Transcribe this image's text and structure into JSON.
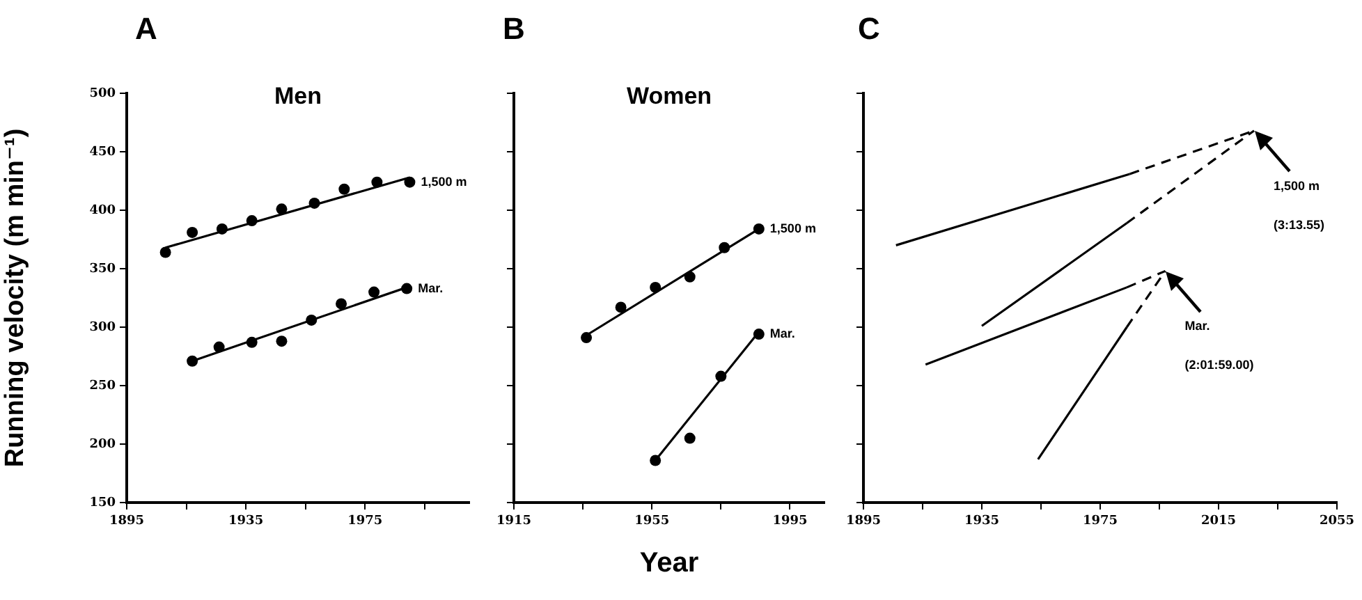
{
  "chart_data": [
    {
      "type": "scatter",
      "title": "Men",
      "ylabel": "Running velocity (m min⁻¹)",
      "annotations": [
        "A"
      ],
      "xlim": [
        1895,
        2010
      ],
      "xticks": [
        1895,
        {
          "value": 1915,
          "label": null
        },
        1935,
        {
          "value": 1955,
          "label": null
        },
        1975,
        {
          "value": 1995,
          "label": null
        }
      ],
      "ylim": [
        150,
        500
      ],
      "yticks": [
        150,
        200,
        250,
        300,
        350,
        400,
        450,
        500
      ],
      "series": [
        {
          "name": "1,500 m",
          "marker": "circle",
          "color": "#000000",
          "x": [
            1908,
            1917,
            1927,
            1937,
            1947,
            1958,
            1968,
            1979,
            1990
          ],
          "values": [
            364,
            381,
            384,
            391,
            401,
            406,
            418,
            424,
            424
          ]
        },
        {
          "name": "Mar.",
          "marker": "circle",
          "color": "#000000",
          "x": [
            1917,
            1926,
            1937,
            1947,
            1957,
            1967,
            1978,
            1989
          ],
          "values": [
            271,
            283,
            287,
            288,
            306,
            320,
            330,
            333
          ]
        },
        {
          "type": "line",
          "marker": "none",
          "line_style": "solid",
          "color": "#000000",
          "x": [
            1908,
            1990
          ],
          "values": [
            368,
            428
          ]
        },
        {
          "type": "line",
          "marker": "none",
          "line_style": "solid",
          "color": "#000000",
          "x": [
            1917,
            1989
          ],
          "values": [
            271,
            334
          ]
        }
      ]
    },
    {
      "type": "scatter",
      "title": "Women",
      "xlabel": "Year",
      "annotations": [
        "B"
      ],
      "tick_labels": "x",
      "xlim": [
        1915,
        2005
      ],
      "xticks": [
        1915,
        {
          "value": 1935,
          "label": null
        },
        1955,
        {
          "value": 1975,
          "label": null
        },
        1995
      ],
      "ylim": [
        150,
        500
      ],
      "yticks": [
        150,
        200,
        250,
        300,
        350,
        400,
        450,
        500
      ],
      "series": [
        {
          "name": "1,500 m",
          "marker": "circle",
          "color": "#000000",
          "x": [
            1936,
            1946,
            1956,
            1966,
            1976,
            1986
          ],
          "values": [
            291,
            317,
            334,
            343,
            368,
            384
          ]
        },
        {
          "name": "Mar.",
          "marker": "circle",
          "color": "#000000",
          "x": [
            1956,
            1966,
            1975,
            1986
          ],
          "values": [
            186,
            205,
            258,
            294
          ]
        },
        {
          "type": "line",
          "marker": "none",
          "line_style": "solid",
          "color": "#000000",
          "x": [
            1936,
            1986
          ],
          "values": [
            293,
            384
          ]
        },
        {
          "type": "line",
          "marker": "none",
          "line_style": "solid",
          "color": "#000000",
          "x": [
            1956,
            1986
          ],
          "values": [
            186,
            296
          ]
        }
      ]
    },
    {
      "type": "line",
      "annotations": [
        "C",
        {
          "text": "1,500 m",
          "x": 2027,
          "y": 468
        },
        "(3:13.55)",
        {
          "text": "Mar.",
          "x": 1997,
          "y": 348
        },
        "(2:01:59.00)"
      ],
      "tick_labels": "x",
      "xlim": [
        1895,
        2055
      ],
      "xticks": [
        1895,
        {
          "value": 1915,
          "label": null
        },
        1935,
        {
          "value": 1955,
          "label": null
        },
        1975,
        {
          "value": 1995,
          "label": null
        },
        2015,
        {
          "value": 2035,
          "label": null
        },
        2055
      ],
      "ylim": [
        150,
        500
      ],
      "yticks": [
        150,
        200,
        250,
        300,
        350,
        400,
        450,
        500
      ],
      "series": [
        {
          "marker": "none",
          "line_style": "solid",
          "color": "#000000",
          "x": [
            1906,
            1985
          ],
          "values": [
            370,
            431
          ]
        },
        {
          "marker": "none",
          "line_style": "dashed",
          "color": "#000000",
          "x": [
            1985,
            2027
          ],
          "values": [
            431,
            468
          ]
        },
        {
          "marker": "none",
          "line_style": "solid",
          "color": "#000000",
          "x": [
            1935,
            1984
          ],
          "values": [
            301,
            389
          ]
        },
        {
          "marker": "none",
          "line_style": "dashed",
          "color": "#000000",
          "x": [
            1984,
            2027
          ],
          "values": [
            389,
            468
          ]
        },
        {
          "marker": "none",
          "line_style": "solid",
          "color": "#000000",
          "x": [
            1916,
            1984
          ],
          "values": [
            268,
            334
          ]
        },
        {
          "marker": "none",
          "line_style": "dashed",
          "color": "#000000",
          "x": [
            1984,
            1997
          ],
          "values": [
            334,
            348
          ]
        },
        {
          "marker": "none",
          "line_style": "solid",
          "color": "#000000",
          "x": [
            1954,
            1984
          ],
          "values": [
            187,
            300
          ]
        },
        {
          "marker": "none",
          "line_style": "dashed",
          "color": "#000000",
          "x": [
            1984,
            1997
          ],
          "values": [
            300,
            348
          ]
        }
      ]
    }
  ]
}
